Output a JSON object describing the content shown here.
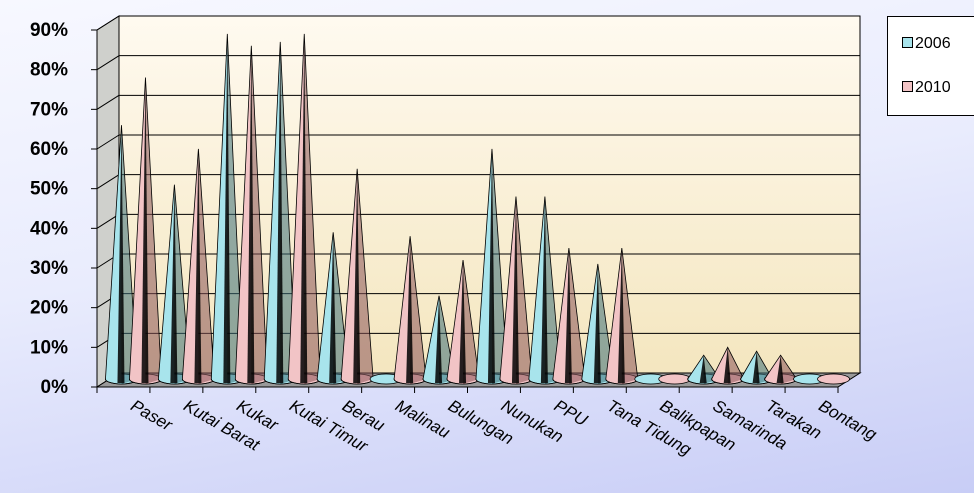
{
  "chart_data": {
    "type": "bar",
    "style": "3d-cone",
    "categories": [
      "Paser",
      "Kutai Barat",
      "Kukar",
      "Kutai Timur",
      "Berau",
      "Malinau",
      "Bulungan",
      "Nunukan",
      "PPU",
      "Tana Tidung",
      "Balikpapan",
      "Samarinda",
      "Tarakan",
      "Bontang"
    ],
    "series": [
      {
        "name": "2006",
        "color": "#a8e4ec",
        "values": [
          64,
          49,
          87,
          85,
          37,
          0,
          21,
          58,
          46,
          29,
          0,
          6,
          7,
          0
        ]
      },
      {
        "name": "2010",
        "color": "#f2c4c6",
        "values": [
          76,
          58,
          84,
          87,
          53,
          36,
          30,
          46,
          33,
          33,
          0,
          8,
          6,
          0
        ]
      }
    ],
    "yticks": [
      "0%",
      "10%",
      "20%",
      "30%",
      "40%",
      "50%",
      "60%",
      "70%",
      "80%",
      "90%"
    ],
    "ylim": [
      0,
      90
    ],
    "yunit": "%",
    "grid": true,
    "legend_position": "right",
    "colors": {
      "wall": "#fbf3dc",
      "floor": "#9a9a9a",
      "cone_edge": "#000000"
    }
  }
}
